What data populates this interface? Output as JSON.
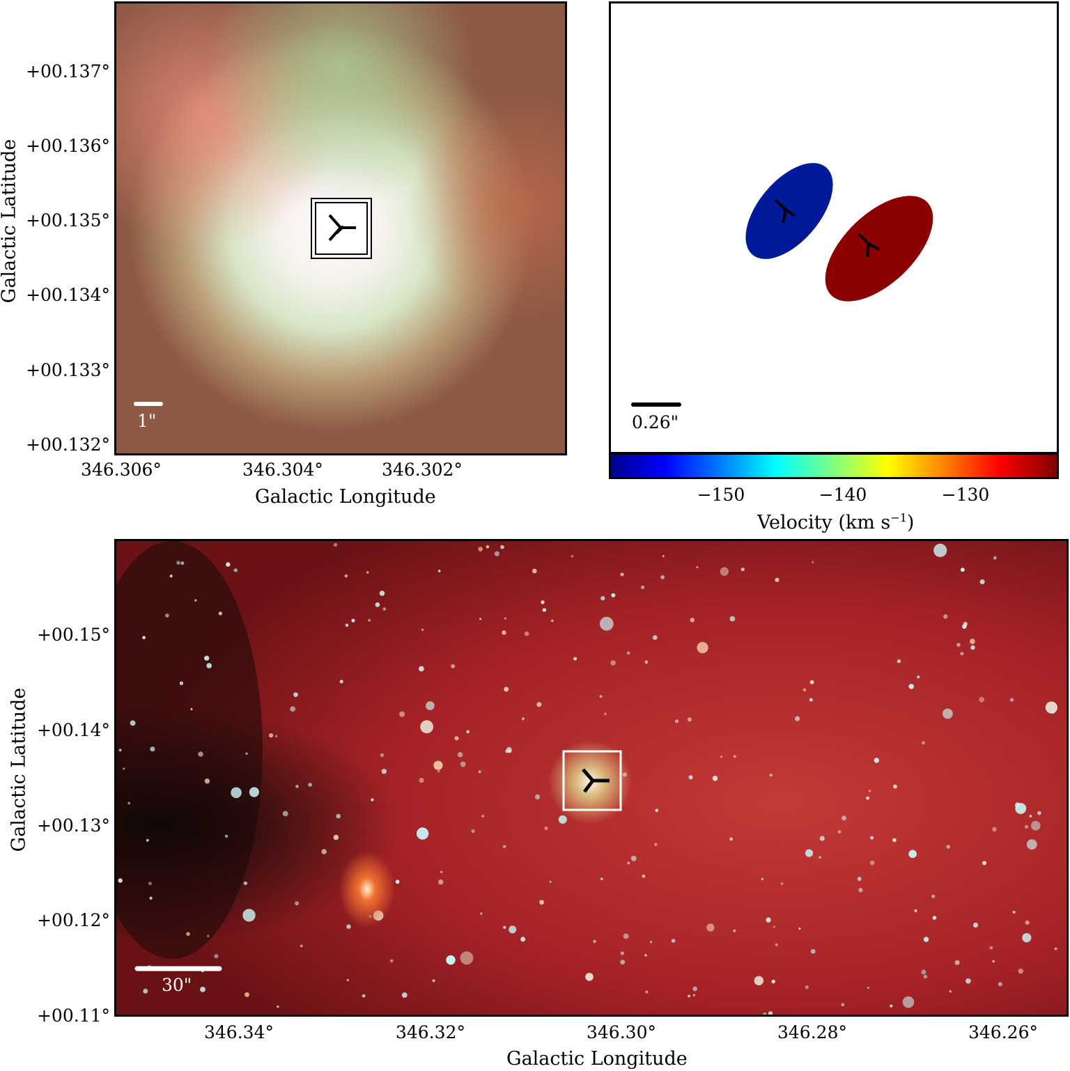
{
  "top_left": {
    "ytick_labels": [
      "+00.137°",
      "+00.136°",
      "+00.135°",
      "+00.134°",
      "+00.133°",
      "+00.132°"
    ],
    "xtick_labels": [
      "346.306°",
      "346.304°",
      "346.302°"
    ],
    "xlabel": "Galactic Longitude",
    "ylabel": "Galactic Latitude",
    "scalebar_label": "1\""
  },
  "top_right": {
    "scalebar_label": "0.26\"",
    "colorbar_ticks": [
      "−150",
      "−140",
      "−130"
    ],
    "colorbar_label": "Velocity (km s",
    "colorbar_label_sup": "−1",
    "colorbar_label_end": ")",
    "colormap": "jet",
    "blob_colors": [
      "#001a99",
      "#8b0000"
    ]
  },
  "bottom": {
    "ytick_labels": [
      "+00.15°",
      "+00.14°",
      "+00.13°",
      "+00.12°",
      "+00.11°"
    ],
    "xtick_labels": [
      "346.34°",
      "346.32°",
      "346.30°",
      "346.28°",
      "346.26°"
    ],
    "xlabel": "Galactic Longitude",
    "ylabel": "Galactic Latitude",
    "scalebar_label": "30\""
  }
}
